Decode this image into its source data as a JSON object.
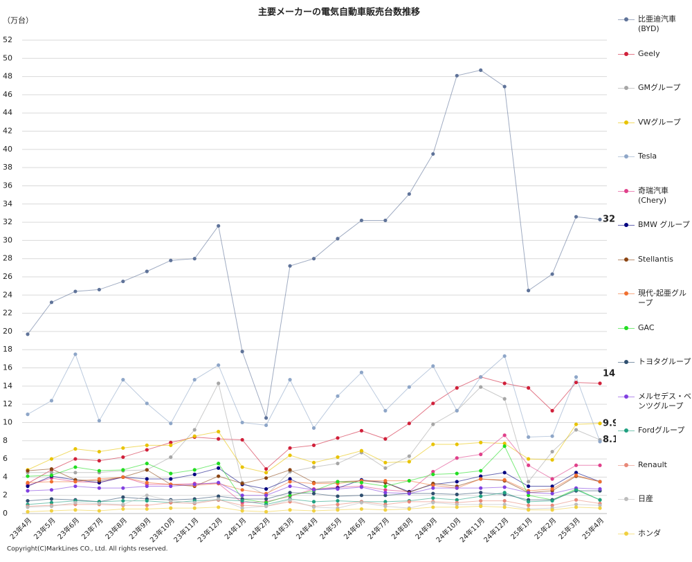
{
  "chart_data": {
    "type": "line",
    "title": "主要メーカーの電気自動車販売台数推移",
    "y_label": "（万台）",
    "source": "Copyright(C)MarkLines CO., Ltd. All rights reserved.",
    "categories": [
      "23年4月",
      "23年5月",
      "23年6月",
      "23年7月",
      "23年8月",
      "23年9月",
      "23年10月",
      "23年11月",
      "23年12月",
      "24年1月",
      "24年2月",
      "24年3月",
      "24年4月",
      "24年5月",
      "24年6月",
      "24年7月",
      "24年8月",
      "24年9月",
      "24年10月",
      "24年11月",
      "24年12月",
      "25年1月",
      "25年2月",
      "25年3月",
      "25年4月"
    ],
    "ylim": [
      0,
      52
    ],
    "yticks": [
      0,
      2,
      4,
      6,
      8,
      10,
      12,
      14,
      16,
      18,
      20,
      22,
      24,
      26,
      28,
      30,
      32,
      34,
      36,
      38,
      40,
      42,
      44,
      46,
      48,
      50,
      52
    ],
    "grid": true,
    "series": [
      {
        "name": "比亜迪汽車\n(BYD)",
        "color": "#5f7399",
        "show_last_label": true,
        "values": [
          19.7,
          23.2,
          24.4,
          24.6,
          25.5,
          26.6,
          27.8,
          28.0,
          31.6,
          17.8,
          10.5,
          27.2,
          28.0,
          30.2,
          32.2,
          32.2,
          35.1,
          39.5,
          48.1,
          48.7,
          46.9,
          24.5,
          26.3,
          32.6,
          32.3
        ]
      },
      {
        "name": "Geely",
        "color": "#d0203a",
        "show_last_label": true,
        "values": [
          3.3,
          4.8,
          6.0,
          5.8,
          6.2,
          7.0,
          7.8,
          8.4,
          8.2,
          8.1,
          4.9,
          7.2,
          7.5,
          8.3,
          9.1,
          8.2,
          9.9,
          12.1,
          13.8,
          15.0,
          14.3,
          13.8,
          11.3,
          14.4,
          14.3
        ]
      },
      {
        "name": "GMグループ",
        "color": "#a6a6a6",
        "show_last_label": true,
        "values": [
          4.5,
          4.5,
          4.5,
          4.5,
          4.7,
          4.8,
          6.2,
          9.2,
          14.3,
          3.4,
          2.0,
          4.6,
          5.1,
          5.5,
          6.7,
          5.0,
          6.3,
          9.8,
          11.3,
          13.9,
          12.6,
          3.5,
          6.8,
          9.2,
          8.1
        ]
      },
      {
        "name": "VWグループ",
        "color": "#e8c300",
        "show_last_label": true,
        "values": [
          4.8,
          6.0,
          7.1,
          6.8,
          7.2,
          7.5,
          7.5,
          8.5,
          9.0,
          5.1,
          4.5,
          6.4,
          5.6,
          6.2,
          6.9,
          5.6,
          5.7,
          7.6,
          7.6,
          7.8,
          7.7,
          6.0,
          5.9,
          9.8,
          9.9
        ]
      },
      {
        "name": "Tesla",
        "color": "#8ea6c8",
        "values": [
          10.9,
          12.4,
          17.5,
          10.2,
          14.7,
          12.1,
          9.9,
          14.7,
          16.3,
          10.0,
          9.7,
          14.7,
          9.4,
          12.9,
          15.5,
          11.3,
          13.9,
          16.2,
          11.3,
          15.0,
          17.3,
          8.4,
          8.5,
          15.0,
          7.9
        ]
      },
      {
        "name": "奇瑞汽車\n(Chery)",
        "color": "#e0408a",
        "values": [
          3.1,
          3.9,
          3.5,
          3.4,
          4.0,
          3.2,
          3.2,
          3.3,
          3.3,
          1.2,
          1.3,
          1.9,
          2.7,
          2.9,
          3.0,
          2.6,
          2.4,
          4.6,
          6.1,
          6.5,
          8.6,
          5.3,
          3.8,
          5.3,
          5.3
        ]
      },
      {
        "name": "BMW グループ",
        "color": "#00007f",
        "values": [
          3.0,
          4.1,
          3.7,
          3.4,
          4.0,
          3.8,
          3.8,
          4.3,
          5.0,
          3.2,
          2.7,
          3.8,
          2.6,
          2.8,
          3.7,
          3.4,
          2.4,
          3.2,
          3.5,
          4.1,
          4.5,
          3.0,
          3.0,
          4.5,
          3.5
        ]
      },
      {
        "name": "Stellantis",
        "color": "#8b4513",
        "values": [
          4.7,
          4.9,
          3.7,
          3.6,
          4.0,
          4.8,
          3.2,
          3.0,
          4.1,
          3.3,
          3.9,
          4.8,
          3.4,
          3.5,
          3.6,
          3.4,
          2.3,
          3.3,
          3.0,
          3.8,
          3.6,
          2.3,
          2.5,
          4.1,
          3.5
        ]
      },
      {
        "name": "現代-起亜グループ",
        "color": "#f07030",
        "values": [
          3.4,
          3.5,
          3.5,
          3.8,
          4.0,
          3.4,
          3.2,
          3.1,
          3.3,
          2.6,
          2.2,
          3.5,
          3.3,
          3.3,
          3.6,
          3.6,
          3.6,
          3.1,
          2.8,
          3.8,
          3.7,
          2.5,
          2.7,
          4.2,
          3.5
        ]
      },
      {
        "name": "GAC",
        "color": "#22dd22",
        "values": [
          4.1,
          4.2,
          5.1,
          4.7,
          4.8,
          5.5,
          4.4,
          4.8,
          5.5,
          1.6,
          1.2,
          2.0,
          2.5,
          3.5,
          3.4,
          3.0,
          3.6,
          4.3,
          4.4,
          4.7,
          7.4,
          2.0,
          1.5,
          2.7,
          1.5
        ]
      },
      {
        "name": "トヨタグループ",
        "color": "#2f4f6f",
        "values": [
          1.4,
          1.6,
          1.5,
          1.3,
          1.8,
          1.6,
          1.5,
          1.6,
          1.9,
          1.6,
          1.6,
          2.3,
          2.2,
          1.9,
          2.0,
          2.0,
          2.2,
          2.2,
          2.1,
          2.3,
          2.1,
          1.5,
          1.5,
          2.5,
          2.5
        ]
      },
      {
        "name": "メルセデス・ベンツグループ",
        "color": "#8040e0",
        "values": [
          2.5,
          2.6,
          3.0,
          2.8,
          2.8,
          3.0,
          3.0,
          3.2,
          3.4,
          2.0,
          2.0,
          3.0,
          2.6,
          2.7,
          2.9,
          2.3,
          2.2,
          2.8,
          2.8,
          2.8,
          2.9,
          2.3,
          2.2,
          2.8,
          2.7
        ]
      },
      {
        "name": "Fordグループ",
        "color": "#20a080",
        "values": [
          1.0,
          1.2,
          1.4,
          1.3,
          1.4,
          1.4,
          1.2,
          1.4,
          1.5,
          1.4,
          1.0,
          1.6,
          1.3,
          1.4,
          1.3,
          1.3,
          1.4,
          1.7,
          1.5,
          1.9,
          2.3,
          1.3,
          1.4,
          2.6,
          1.5
        ]
      },
      {
        "name": "Renault",
        "color": "#e88878",
        "values": [
          0.8,
          0.9,
          1.0,
          1.0,
          0.9,
          0.9,
          1.2,
          1.1,
          1.5,
          0.9,
          0.8,
          1.3,
          0.8,
          1.0,
          1.3,
          1.0,
          1.3,
          1.3,
          1.2,
          1.4,
          1.4,
          0.9,
          0.9,
          1.5,
          1.1
        ]
      },
      {
        "name": "日産",
        "color": "#bdbdbd",
        "values": [
          0.7,
          0.8,
          1.2,
          1.1,
          1.0,
          2.0,
          1.4,
          1.2,
          1.6,
          0.6,
          0.8,
          1.5,
          0.7,
          0.6,
          1.2,
          0.8,
          0.6,
          1.2,
          1.0,
          1.0,
          1.0,
          0.5,
          0.6,
          1.0,
          0.9
        ]
      },
      {
        "name": "ホンダ",
        "color": "#f0d040",
        "values": [
          0.2,
          0.3,
          0.4,
          0.3,
          0.5,
          0.5,
          0.6,
          0.6,
          0.7,
          0.3,
          0.2,
          0.4,
          0.3,
          0.4,
          0.5,
          0.4,
          0.5,
          0.7,
          0.7,
          0.8,
          0.7,
          0.4,
          0.4,
          0.7,
          0.6
        ]
      }
    ]
  }
}
